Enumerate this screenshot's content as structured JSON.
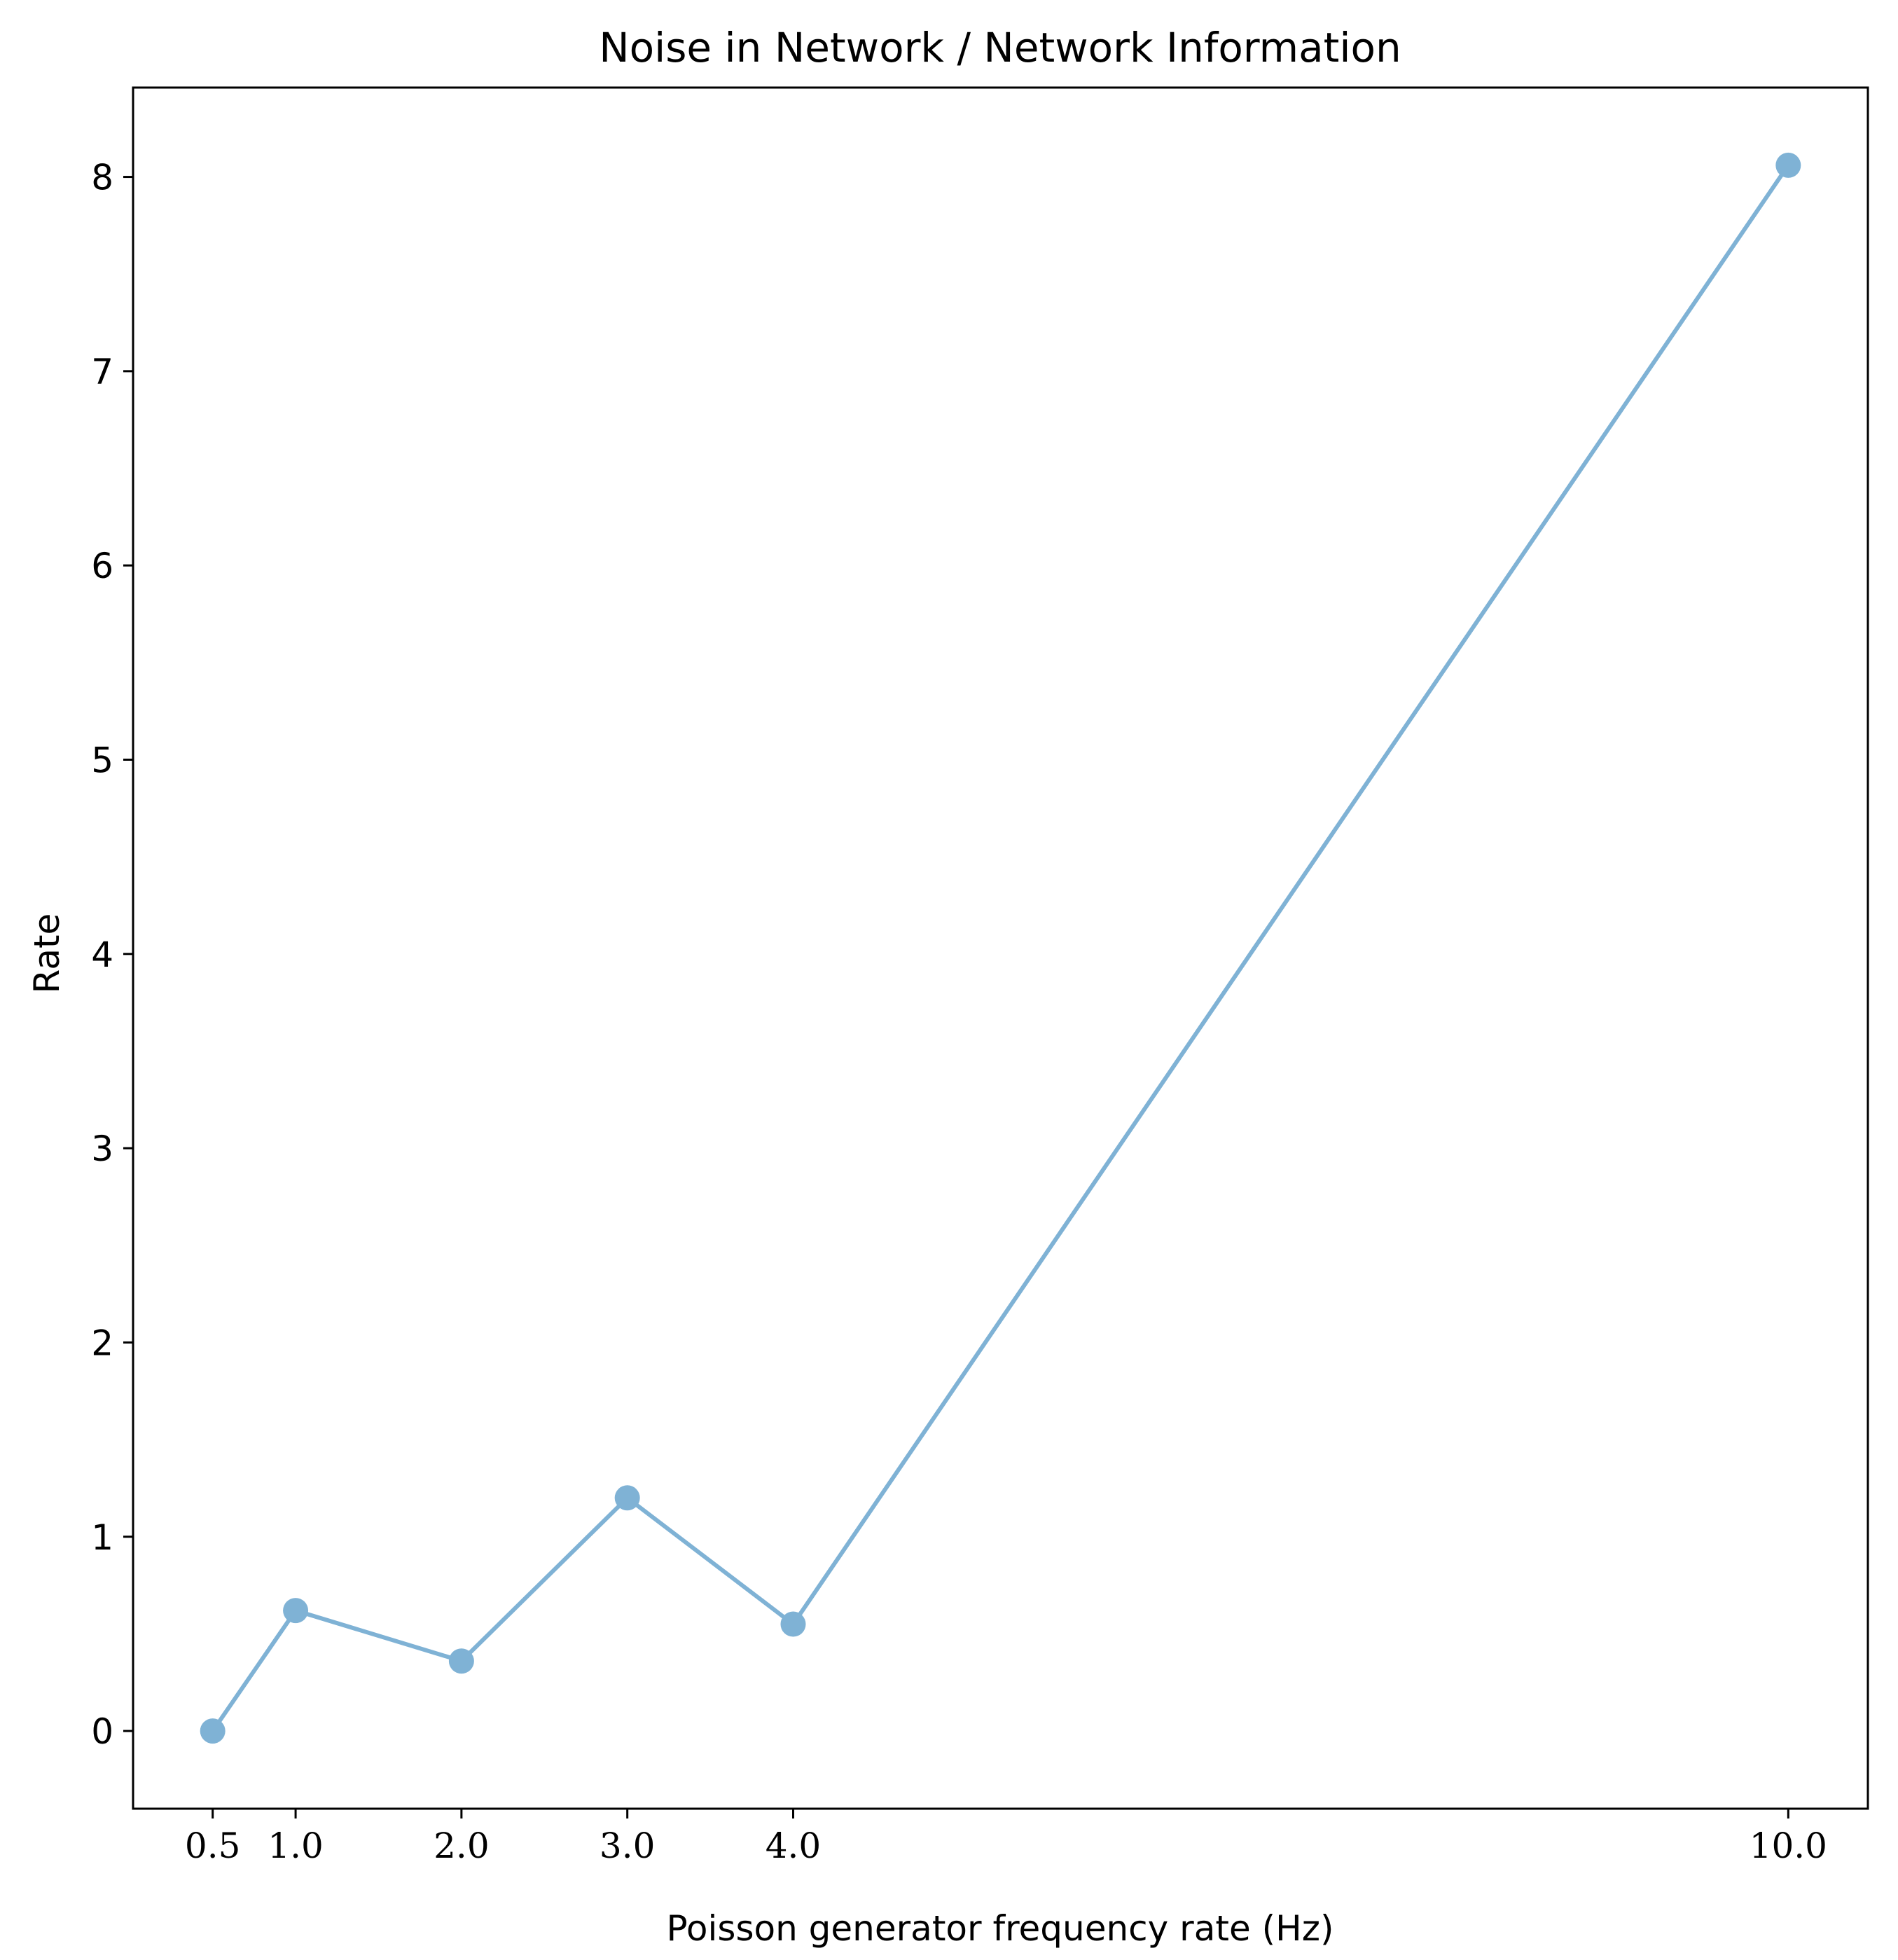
{
  "chart_data": {
    "type": "line",
    "title": "Noise in Network / Network Information",
    "xlabel": "Poisson generator frequency rate (Hz)",
    "ylabel": "Rate",
    "x": [
      0.5,
      1.0,
      2.0,
      3.0,
      4.0,
      10.0
    ],
    "x_tick_labels": [
      "0.5",
      "1.0",
      "2.0",
      "3.0",
      "4.0",
      "10.0"
    ],
    "y_ticks": [
      0,
      1,
      2,
      3,
      4,
      5,
      6,
      7,
      8
    ],
    "y_tick_labels": [
      "0",
      "1",
      "2",
      "3",
      "4",
      "5",
      "6",
      "7",
      "8"
    ],
    "series": [
      {
        "values": [
          0.0,
          0.62,
          0.36,
          1.2,
          0.55,
          8.06
        ]
      }
    ],
    "xlim": [
      0.02,
      10.48
    ],
    "ylim": [
      -0.4,
      8.46
    ],
    "grid": false,
    "line_color": "#7fb2d5",
    "marker_color": "#7fb2d5"
  }
}
